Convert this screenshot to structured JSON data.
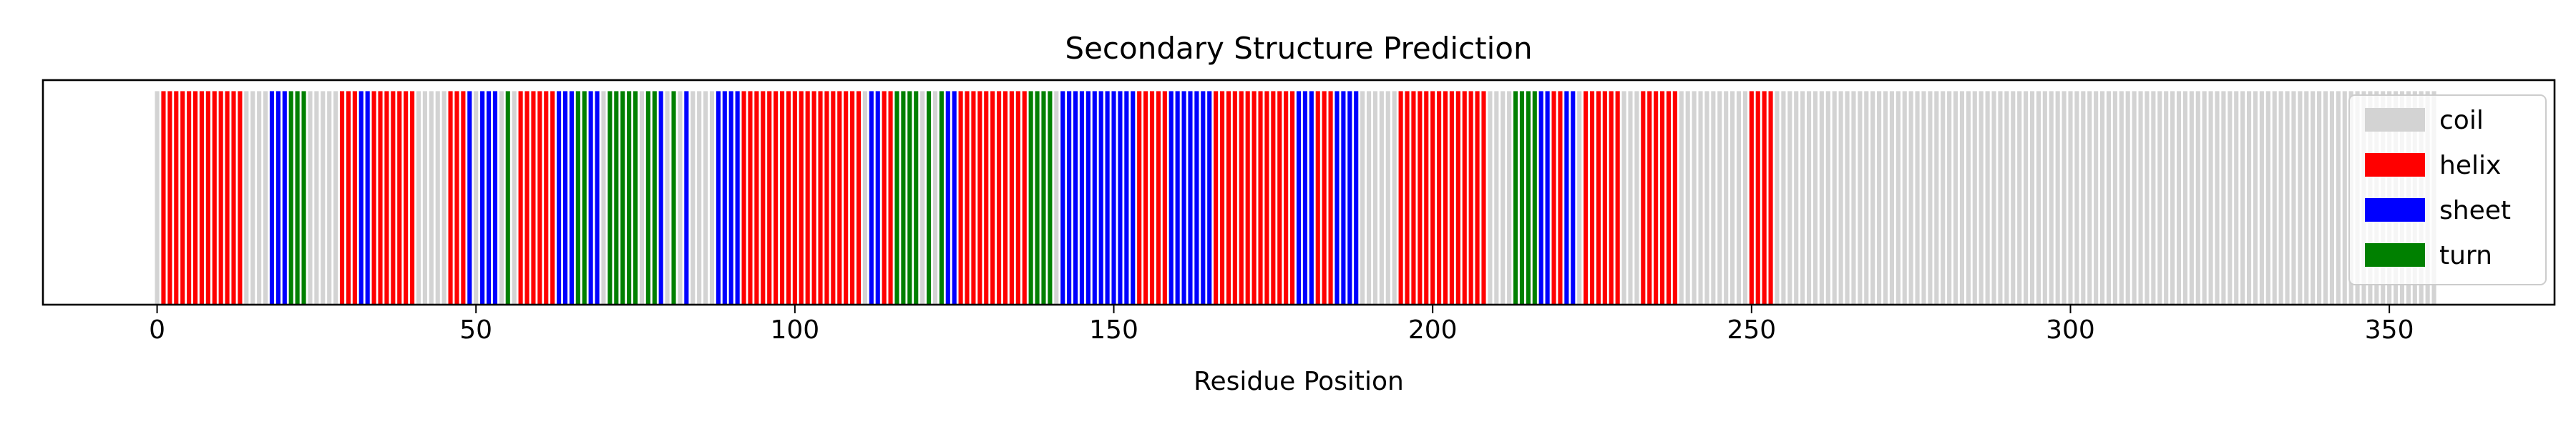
{
  "chart_data": {
    "type": "bar",
    "title": "Secondary Structure Prediction",
    "xlabel": "Residue Position",
    "ylabel": "",
    "xlim": [
      -17.9,
      375.9
    ],
    "ylim": [
      0,
      1.05
    ],
    "xticks": [
      0,
      50,
      100,
      150,
      200,
      250,
      300,
      350
    ],
    "legend": {
      "placement": "upper-right",
      "entries": [
        "coil",
        "helix",
        "sheet",
        "turn"
      ]
    },
    "colors": {
      "coil": "#d3d3d3",
      "helix": "#ff0000",
      "sheet": "#0000ff",
      "turn": "#008000"
    },
    "bar_value": 1,
    "n_residues": 358,
    "segments": [
      {
        "start": 0,
        "end": 0,
        "type": "coil"
      },
      {
        "start": 1,
        "end": 13,
        "type": "helix"
      },
      {
        "start": 14,
        "end": 17,
        "type": "coil"
      },
      {
        "start": 18,
        "end": 20,
        "type": "sheet"
      },
      {
        "start": 21,
        "end": 23,
        "type": "turn"
      },
      {
        "start": 24,
        "end": 28,
        "type": "coil"
      },
      {
        "start": 29,
        "end": 31,
        "type": "helix"
      },
      {
        "start": 32,
        "end": 33,
        "type": "sheet"
      },
      {
        "start": 34,
        "end": 40,
        "type": "helix"
      },
      {
        "start": 41,
        "end": 45,
        "type": "coil"
      },
      {
        "start": 46,
        "end": 48,
        "type": "helix"
      },
      {
        "start": 49,
        "end": 49,
        "type": "sheet"
      },
      {
        "start": 50,
        "end": 50,
        "type": "coil"
      },
      {
        "start": 51,
        "end": 53,
        "type": "sheet"
      },
      {
        "start": 54,
        "end": 54,
        "type": "coil"
      },
      {
        "start": 55,
        "end": 55,
        "type": "turn"
      },
      {
        "start": 56,
        "end": 56,
        "type": "coil"
      },
      {
        "start": 57,
        "end": 62,
        "type": "helix"
      },
      {
        "start": 63,
        "end": 65,
        "type": "sheet"
      },
      {
        "start": 66,
        "end": 67,
        "type": "turn"
      },
      {
        "start": 68,
        "end": 69,
        "type": "sheet"
      },
      {
        "start": 70,
        "end": 70,
        "type": "coil"
      },
      {
        "start": 71,
        "end": 75,
        "type": "turn"
      },
      {
        "start": 76,
        "end": 76,
        "type": "coil"
      },
      {
        "start": 77,
        "end": 78,
        "type": "turn"
      },
      {
        "start": 79,
        "end": 79,
        "type": "sheet"
      },
      {
        "start": 80,
        "end": 80,
        "type": "coil"
      },
      {
        "start": 81,
        "end": 81,
        "type": "turn"
      },
      {
        "start": 82,
        "end": 82,
        "type": "coil"
      },
      {
        "start": 83,
        "end": 83,
        "type": "sheet"
      },
      {
        "start": 84,
        "end": 87,
        "type": "coil"
      },
      {
        "start": 88,
        "end": 91,
        "type": "sheet"
      },
      {
        "start": 92,
        "end": 110,
        "type": "helix"
      },
      {
        "start": 111,
        "end": 111,
        "type": "coil"
      },
      {
        "start": 112,
        "end": 113,
        "type": "sheet"
      },
      {
        "start": 114,
        "end": 115,
        "type": "helix"
      },
      {
        "start": 116,
        "end": 119,
        "type": "turn"
      },
      {
        "start": 120,
        "end": 120,
        "type": "coil"
      },
      {
        "start": 121,
        "end": 121,
        "type": "turn"
      },
      {
        "start": 122,
        "end": 122,
        "type": "coil"
      },
      {
        "start": 123,
        "end": 123,
        "type": "turn"
      },
      {
        "start": 124,
        "end": 125,
        "type": "sheet"
      },
      {
        "start": 126,
        "end": 136,
        "type": "helix"
      },
      {
        "start": 137,
        "end": 140,
        "type": "turn"
      },
      {
        "start": 141,
        "end": 141,
        "type": "coil"
      },
      {
        "start": 142,
        "end": 153,
        "type": "sheet"
      },
      {
        "start": 154,
        "end": 158,
        "type": "helix"
      },
      {
        "start": 159,
        "end": 165,
        "type": "sheet"
      },
      {
        "start": 166,
        "end": 178,
        "type": "helix"
      },
      {
        "start": 179,
        "end": 181,
        "type": "sheet"
      },
      {
        "start": 182,
        "end": 184,
        "type": "helix"
      },
      {
        "start": 185,
        "end": 188,
        "type": "sheet"
      },
      {
        "start": 189,
        "end": 194,
        "type": "coil"
      },
      {
        "start": 195,
        "end": 208,
        "type": "helix"
      },
      {
        "start": 209,
        "end": 212,
        "type": "coil"
      },
      {
        "start": 213,
        "end": 216,
        "type": "turn"
      },
      {
        "start": 217,
        "end": 218,
        "type": "sheet"
      },
      {
        "start": 219,
        "end": 220,
        "type": "helix"
      },
      {
        "start": 221,
        "end": 222,
        "type": "sheet"
      },
      {
        "start": 223,
        "end": 223,
        "type": "coil"
      },
      {
        "start": 224,
        "end": 229,
        "type": "helix"
      },
      {
        "start": 230,
        "end": 232,
        "type": "coil"
      },
      {
        "start": 233,
        "end": 238,
        "type": "helix"
      },
      {
        "start": 239,
        "end": 249,
        "type": "coil"
      },
      {
        "start": 250,
        "end": 253,
        "type": "helix"
      },
      {
        "start": 254,
        "end": 357,
        "type": "coil"
      }
    ]
  }
}
